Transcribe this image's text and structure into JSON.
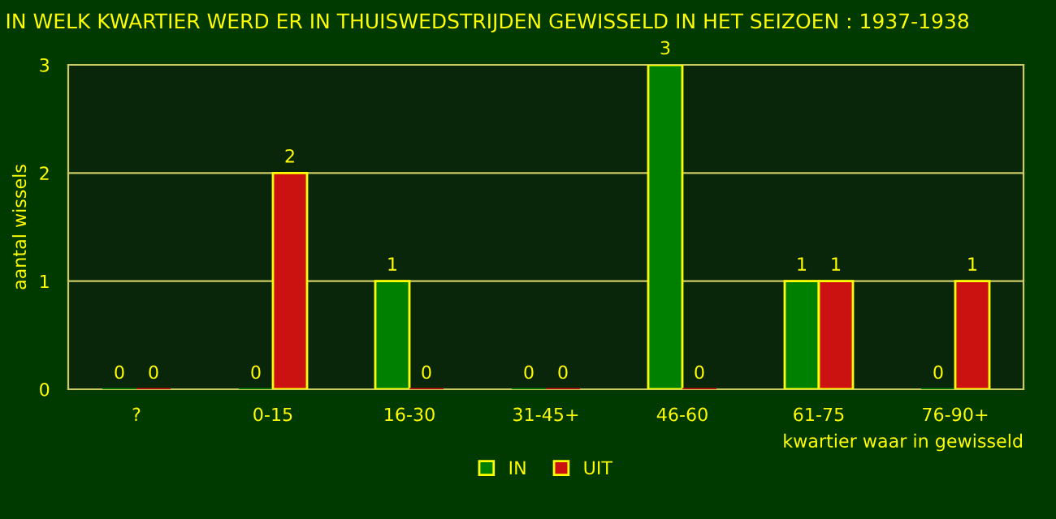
{
  "chart_data": {
    "type": "bar",
    "title": "IN WELK KWARTIER WERD ER IN THUISWEDSTRIJDEN GEWISSELD IN HET SEIZOEN : 1937-1938",
    "xlabel": "kwartier waar in gewisseld",
    "ylabel": "aantal wissels",
    "categories": [
      "?",
      "0-15",
      "16-30",
      "31-45+",
      "46-60",
      "61-75",
      "76-90+"
    ],
    "series": [
      {
        "name": "IN",
        "color": "#008000",
        "values": [
          0,
          0,
          1,
          0,
          3,
          1,
          0
        ]
      },
      {
        "name": "UIT",
        "color": "#cc1111",
        "values": [
          0,
          2,
          0,
          0,
          0,
          1,
          1
        ]
      }
    ],
    "ylim": [
      0,
      3
    ],
    "yticks": [
      0,
      1,
      2,
      3
    ],
    "grid": "y",
    "legend": "bottom",
    "data_labels": true
  }
}
